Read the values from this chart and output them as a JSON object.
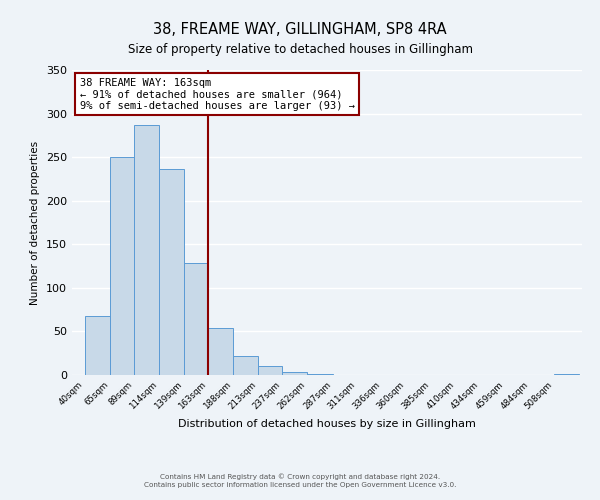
{
  "title": "38, FREAME WAY, GILLINGHAM, SP8 4RA",
  "subtitle": "Size of property relative to detached houses in Gillingham",
  "xlabel": "Distribution of detached houses by size in Gillingham",
  "ylabel": "Number of detached properties",
  "bar_edges": [
    40,
    65,
    89,
    114,
    139,
    163,
    188,
    213,
    237,
    262,
    287,
    311,
    336,
    360,
    385,
    410,
    434,
    459,
    484,
    508,
    533
  ],
  "bar_heights": [
    68,
    250,
    287,
    236,
    129,
    54,
    22,
    10,
    4,
    1,
    0,
    0,
    0,
    0,
    0,
    0,
    0,
    0,
    0,
    1
  ],
  "bar_color": "#c8d9e8",
  "bar_edge_color": "#5b9bd5",
  "vline_x": 163,
  "vline_color": "#8B0000",
  "annotation_title": "38 FREAME WAY: 163sqm",
  "annotation_line1": "← 91% of detached houses are smaller (964)",
  "annotation_line2": "9% of semi-detached houses are larger (93) →",
  "annotation_box_color": "#8B0000",
  "ylim": [
    0,
    350
  ],
  "yticks": [
    0,
    50,
    100,
    150,
    200,
    250,
    300,
    350
  ],
  "footer_line1": "Contains HM Land Registry data © Crown copyright and database right 2024.",
  "footer_line2": "Contains public sector information licensed under the Open Government Licence v3.0.",
  "bg_color": "#eef3f8",
  "grid_color": "#ffffff"
}
